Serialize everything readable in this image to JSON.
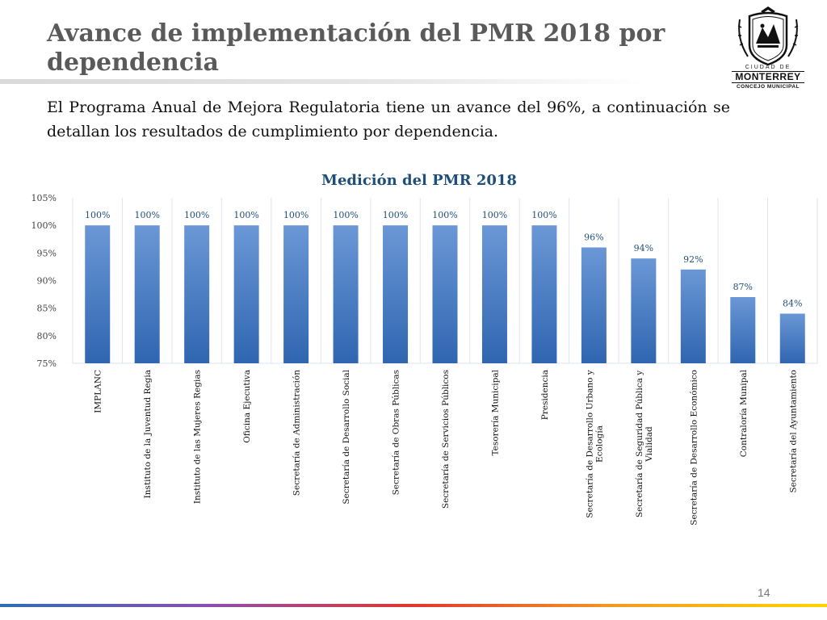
{
  "slide": {
    "title": "Avance de implementación del PMR 2018 por dependencia",
    "intro": "El Programa Anual de Mejora Regulatoria tiene un avance del 96%, a continuación se detallan los resultados de cumplimiento por dependencia.",
    "page_number": "14",
    "logo": {
      "city_label": "CIUDAD DE",
      "name": "MONTERREY",
      "council": "CONCEJO MUNICIPAL"
    }
  },
  "colors": {
    "title": "#5a5a5a",
    "bar_top": "#6b97d6",
    "bar_bottom": "#2f66b0",
    "data_label": "#1f4e79",
    "chart_title": "#1f4e79"
  },
  "chart_data": {
    "type": "bar",
    "title": "Medición del PMR 2018",
    "xlabel": "",
    "ylabel": "",
    "ylim": [
      75,
      105
    ],
    "yticks": [
      75,
      80,
      85,
      90,
      95,
      100,
      105
    ],
    "ytick_labels": [
      "75%",
      "80%",
      "85%",
      "90%",
      "95%",
      "100%",
      "105%"
    ],
    "grid": "vertical category separators",
    "categories": [
      "IMPLANC",
      "Instituto de la Juventud Regia",
      "Instituto de las Mujeres Regias",
      "Oficina Ejecutiva",
      "Secretaría de Administración",
      "Secretaría de Desarrollo Social",
      "Secretaría de Obras Públicas",
      "Secretaría de Servicios Públicos",
      "Tesorería Municipal",
      "Presidencia",
      "Secretaría de Desarrollo Urbano y Ecología",
      "Secretaría de Seguridad Pública y Vialidad",
      "Secretaría de Desarrollo Económico",
      "Contraloría Munipal",
      "Secretaría del Ayuntamiento"
    ],
    "values": [
      100,
      100,
      100,
      100,
      100,
      100,
      100,
      100,
      100,
      100,
      96,
      94,
      92,
      87,
      84
    ],
    "data_labels": [
      "100%",
      "100%",
      "100%",
      "100%",
      "100%",
      "100%",
      "100%",
      "100%",
      "100%",
      "100%",
      "96%",
      "94%",
      "92%",
      "87%",
      "84%"
    ]
  }
}
